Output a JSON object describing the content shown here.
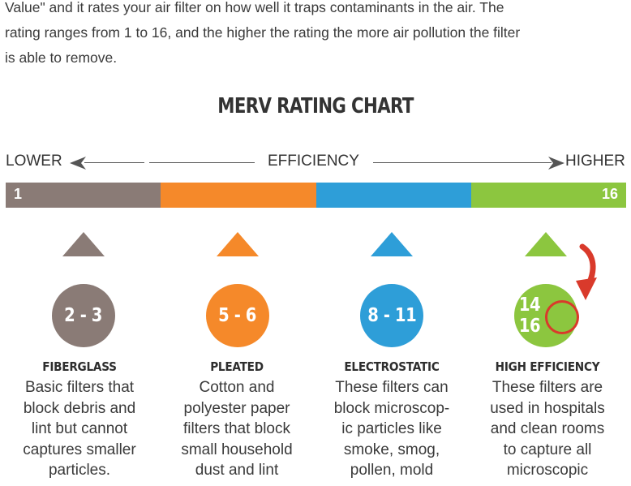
{
  "intro": {
    "lines": [
      "Value\" and it rates your air filter on how well it traps contaminants in the air. The",
      "rating ranges from 1 to 16, and the higher the rating the more air pollution the filter",
      "is able to remove."
    ]
  },
  "chart": {
    "title": "MERV RATING CHART",
    "lower_label": "LOWER",
    "efficiency_label": "EFFICIENCY",
    "higher_label": "HIGHER",
    "bar_min": "1",
    "bar_max": "16",
    "colors": {
      "fiberglass": "#8a7b76",
      "pleated": "#f5892a",
      "electrostatic": "#2e9ed8",
      "high_efficiency": "#8cc63f",
      "highlight": "#d93a2b"
    },
    "categories": [
      {
        "range": "2 - 3",
        "title": "FIBERGLASS",
        "lines": [
          "Basic filters that",
          "block debris and",
          "lint but cannot",
          "captures smaller",
          "particles."
        ]
      },
      {
        "range": "5 - 6",
        "title": "PLEATED",
        "lines": [
          "Cotton and",
          "polyester paper",
          "filters that block",
          "small household",
          "dust and lint"
        ]
      },
      {
        "range": "8 - 11",
        "title": "ELECTROSTATIC",
        "lines": [
          "These filters can",
          "block microscop-",
          "ic particles like",
          "smoke, smog,",
          "pollen, mold"
        ]
      },
      {
        "range_low": "14",
        "range_high": "16",
        "title": "HIGH EFFICIENCY",
        "lines": [
          "These filters are",
          "used in hospitals",
          "and clean rooms",
          "to capture all",
          "microscopic"
        ]
      }
    ]
  }
}
